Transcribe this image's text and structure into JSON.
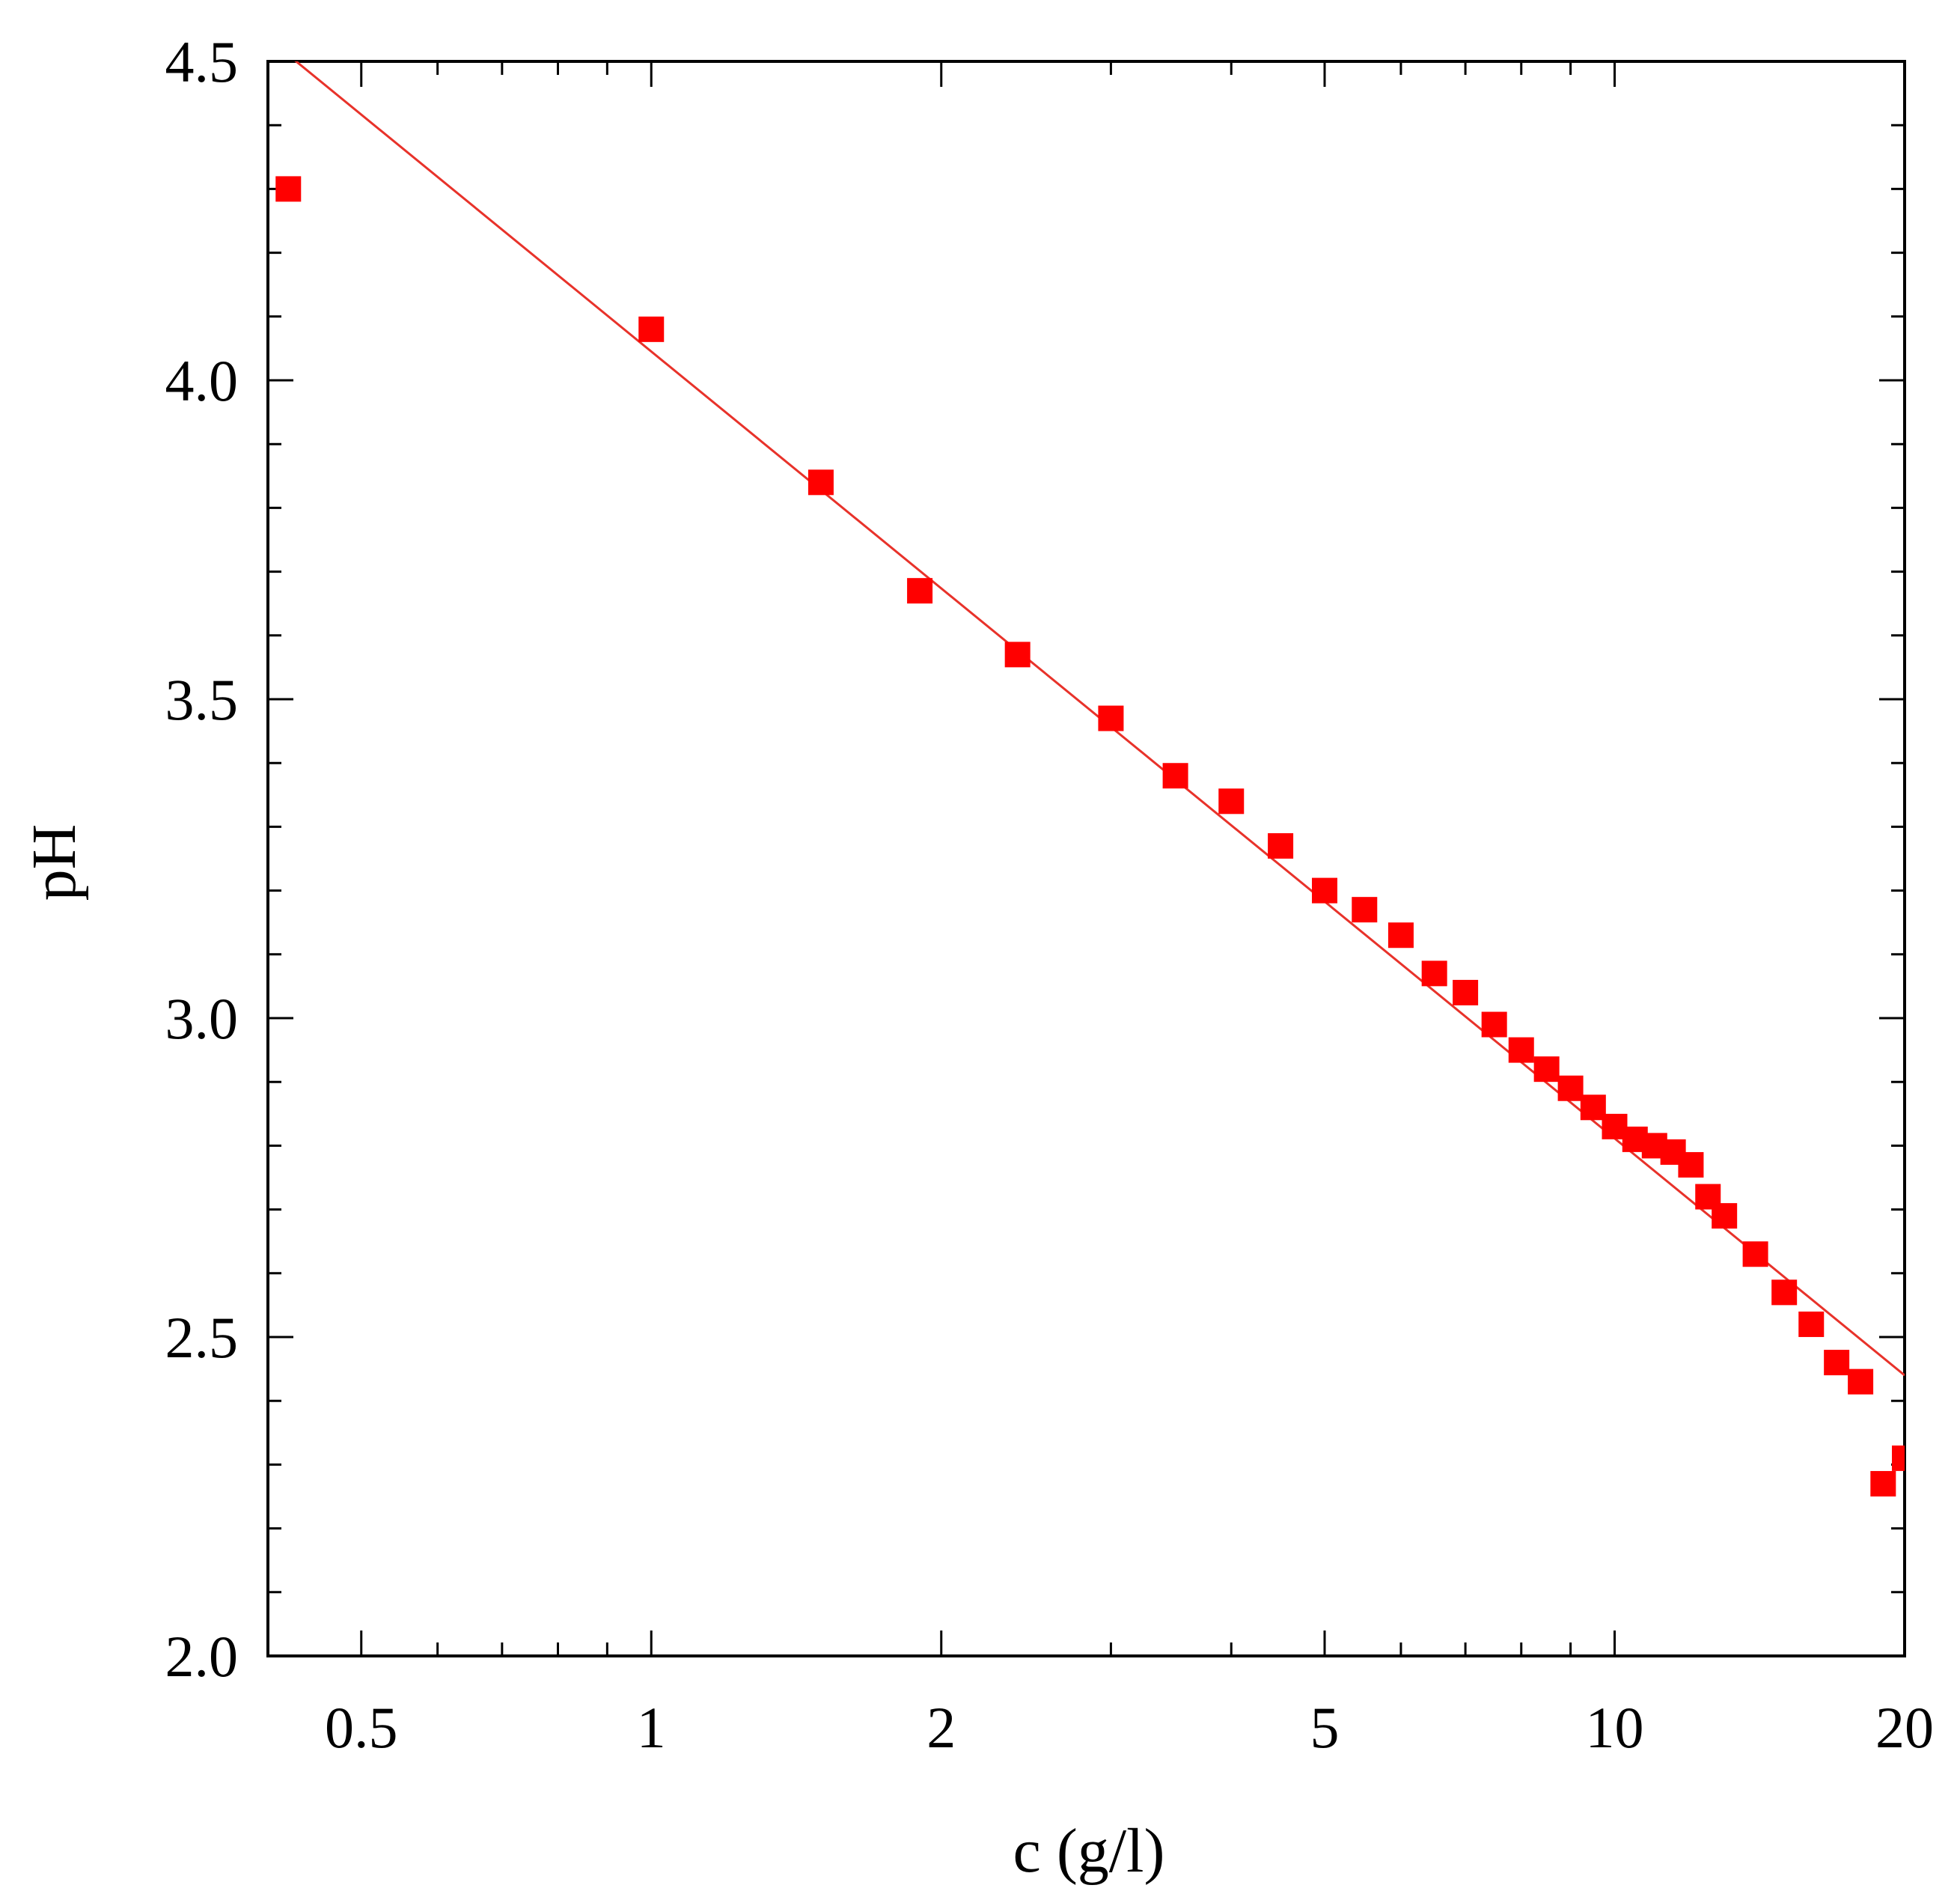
{
  "chart_data": {
    "type": "scatter",
    "xlabel": "c (g/l)",
    "ylabel": "pH",
    "xscale": "log",
    "xlim": [
      0.4,
      20
    ],
    "ylim": [
      2.0,
      4.5
    ],
    "x_ticks": [
      0.5,
      1,
      2,
      5,
      10,
      20
    ],
    "x_tick_labels": [
      "0.5",
      "1",
      "2",
      "5",
      "10",
      "20"
    ],
    "x_minor_ticks": [
      0.6,
      0.7,
      0.8,
      0.9,
      3,
      4,
      6,
      7,
      8,
      9
    ],
    "y_ticks": [
      2.0,
      2.5,
      3.0,
      3.5,
      4.0,
      4.5
    ],
    "y_tick_labels": [
      "2.0",
      "2.5",
      "3.0",
      "3.5",
      "4.0",
      "4.5"
    ],
    "y_minor_step": 0.1,
    "grid": false,
    "colors": {
      "series": "#ff0000",
      "fit": "#e8322a",
      "axes": "#000000"
    },
    "series": [
      {
        "marker": "square",
        "x": [
          0.42,
          1.0,
          1.5,
          1.9,
          2.4,
          3.0,
          3.5,
          4.0,
          4.5,
          5.0,
          5.5,
          6.0,
          6.5,
          7.0,
          7.5,
          8.0,
          8.5,
          9.0,
          9.5,
          10.0,
          10.5,
          11.0,
          11.5,
          12.0,
          12.5,
          13.0,
          14.0,
          15.0,
          16.0,
          17.0,
          18.0,
          19.0,
          20.0
        ],
        "y": [
          4.3,
          4.08,
          3.84,
          3.67,
          3.57,
          3.47,
          3.38,
          3.34,
          3.27,
          3.2,
          3.17,
          3.13,
          3.07,
          3.04,
          2.99,
          2.95,
          2.92,
          2.89,
          2.86,
          2.83,
          2.81,
          2.8,
          2.79,
          2.77,
          2.72,
          2.69,
          2.63,
          2.57,
          2.52,
          2.46,
          2.43,
          2.27,
          2.31
        ]
      }
    ],
    "fit_line": {
      "x": [
        0.42,
        20
      ],
      "y": [
        4.51,
        2.44
      ]
    }
  }
}
